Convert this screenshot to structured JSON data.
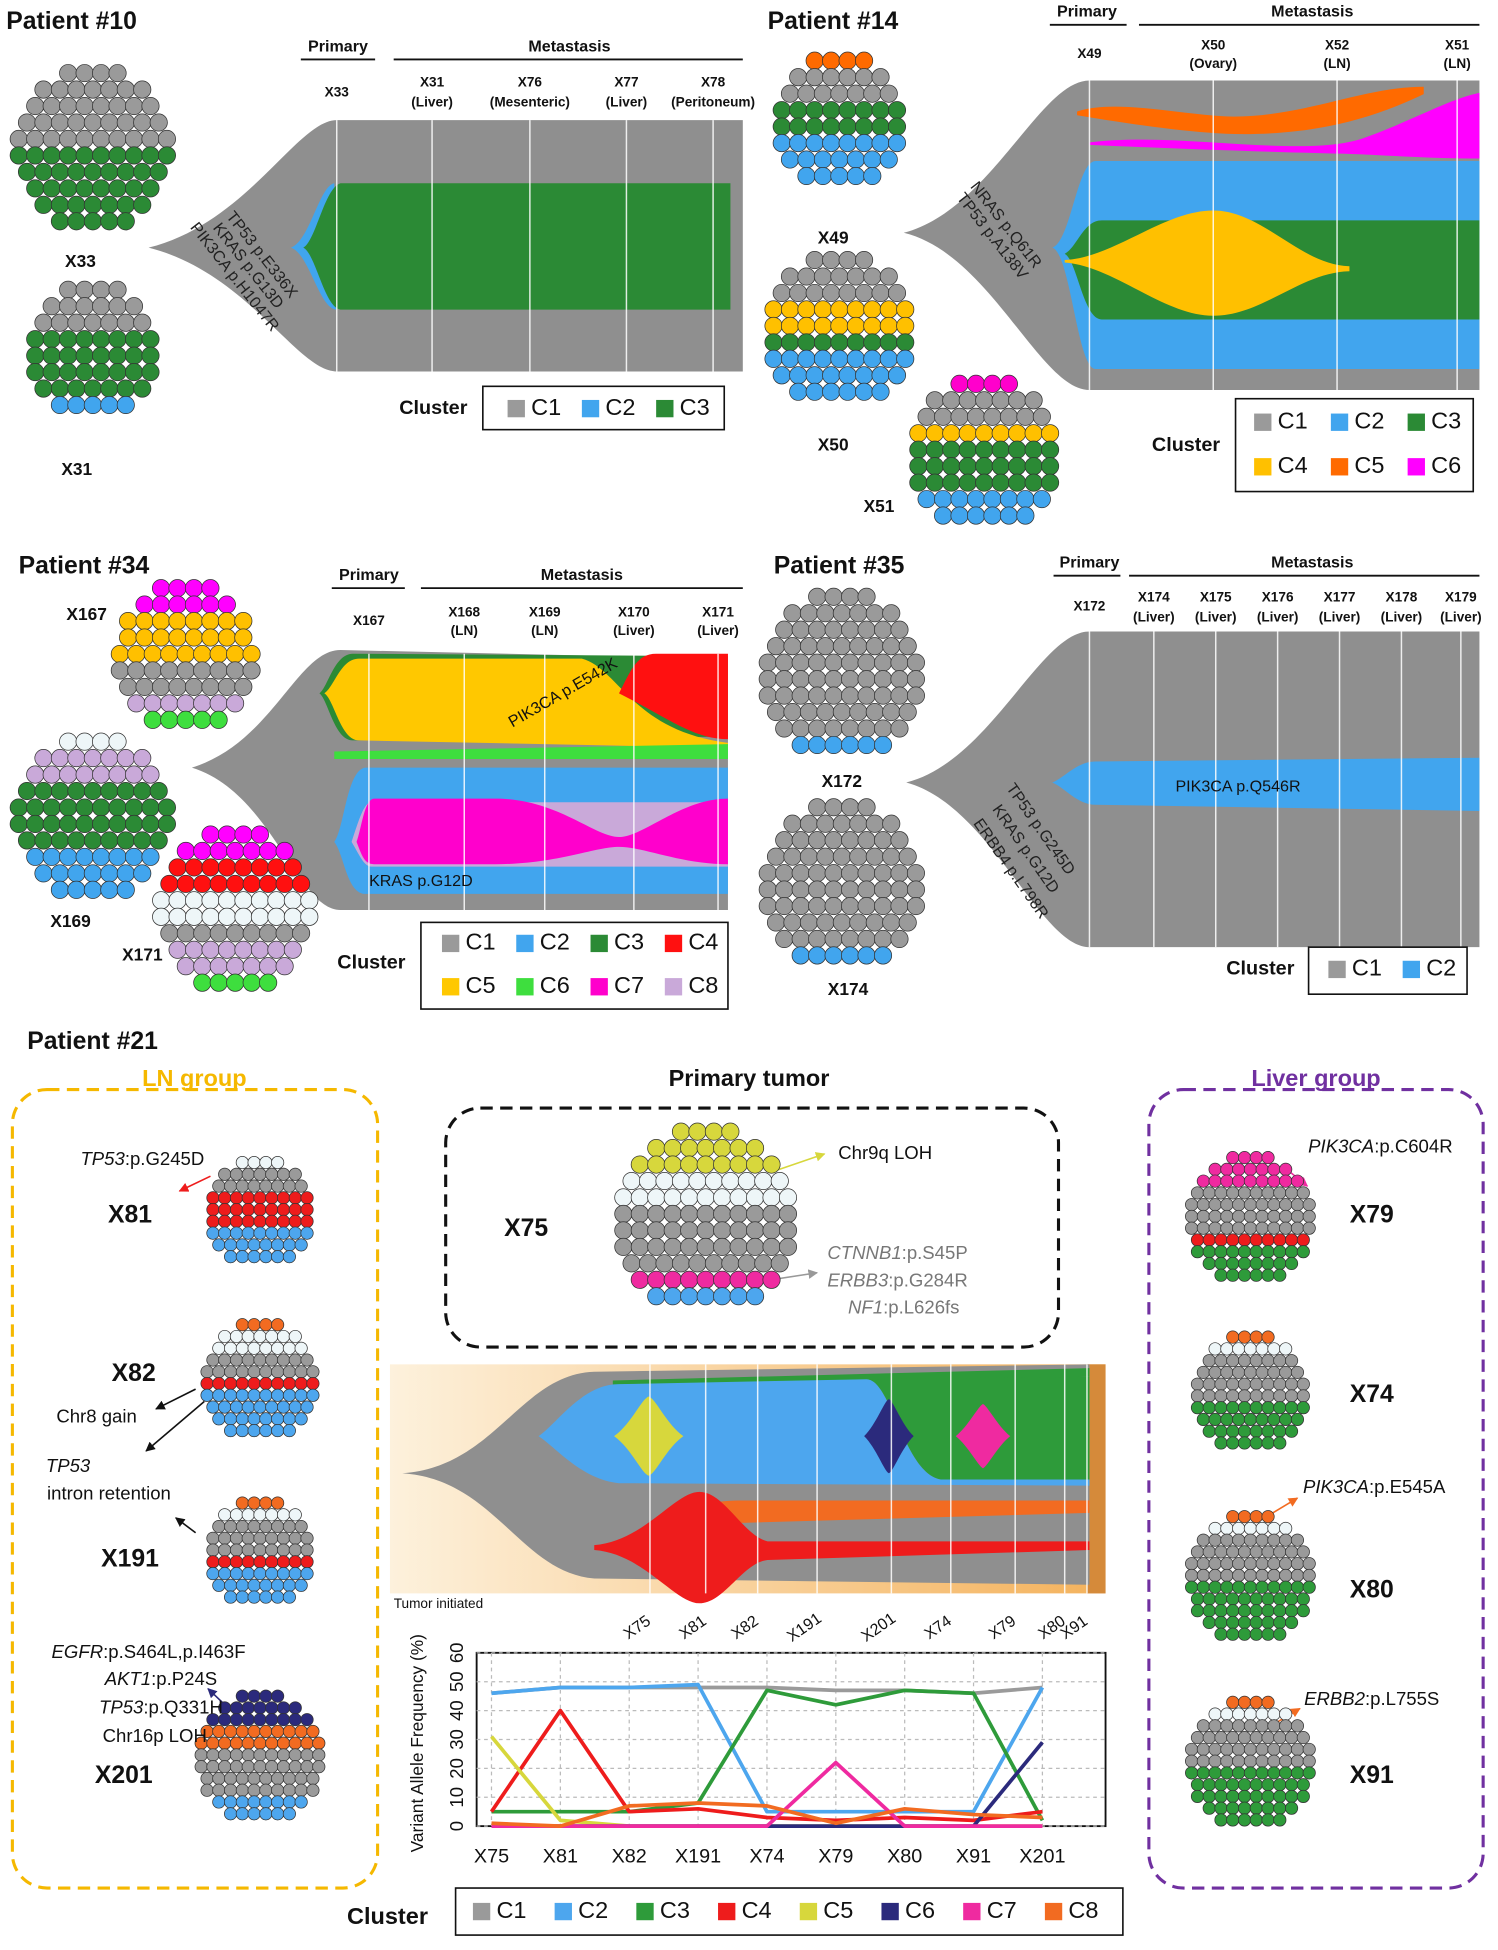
{
  "patients": [
    {
      "title": "Patient #10",
      "primary": "Primary",
      "metastasis": "Metastasis",
      "samples": [
        {
          "name": "X33"
        },
        {
          "name": "X31",
          "site": "(Liver)"
        },
        {
          "name": "X76",
          "site": "(Mesenteric)"
        },
        {
          "name": "X77",
          "site": "(Liver)"
        },
        {
          "name": "X78",
          "site": "(Peritoneum)"
        }
      ],
      "mutations": [
        "TP53 p.E336X",
        "KRAS p.G13D",
        "PIK3CA p.H1047R"
      ],
      "tumors": [
        "X33",
        "X31"
      ],
      "legend_title": "Cluster",
      "clusters": [
        {
          "name": "C1",
          "color": "#9a9a9a"
        },
        {
          "name": "C2",
          "color": "#41a5ee"
        },
        {
          "name": "C3",
          "color": "#2b8a35"
        }
      ]
    },
    {
      "title": "Patient #14",
      "primary": "Primary",
      "metastasis": "Metastasis",
      "samples": [
        {
          "name": "X49"
        },
        {
          "name": "X50",
          "site": "(Ovary)"
        },
        {
          "name": "X52",
          "site": "(LN)"
        },
        {
          "name": "X51",
          "site": "(LN)"
        }
      ],
      "mutations": [
        "NRAS p.Q61R",
        "TP53 p.A138V"
      ],
      "tumors": [
        "X49",
        "X50",
        "X51"
      ],
      "legend_title": "Cluster",
      "clusters": [
        {
          "name": "C1",
          "color": "#9a9a9a"
        },
        {
          "name": "C2",
          "color": "#41a5ee"
        },
        {
          "name": "C3",
          "color": "#2b8a35"
        },
        {
          "name": "C4",
          "color": "#ffc000"
        },
        {
          "name": "C5",
          "color": "#ff6a00"
        },
        {
          "name": "C6",
          "color": "#ff00ff"
        }
      ]
    },
    {
      "title": "Patient #34",
      "primary": "Primary",
      "metastasis": "Metastasis",
      "samples": [
        {
          "name": "X167"
        },
        {
          "name": "X168",
          "site": "(LN)"
        },
        {
          "name": "X169",
          "site": "(LN)"
        },
        {
          "name": "X170",
          "site": "(Liver)"
        },
        {
          "name": "X171",
          "site": "(Liver)"
        }
      ],
      "annotations": [
        "PIK3CA p.E542K",
        "KRAS p.G12D"
      ],
      "tumors": [
        "X167",
        "X169",
        "X171"
      ],
      "legend_title": "Cluster",
      "clusters": [
        {
          "name": "C1",
          "color": "#9a9a9a"
        },
        {
          "name": "C2",
          "color": "#41a5ee"
        },
        {
          "name": "C3",
          "color": "#2b8a35"
        },
        {
          "name": "C4",
          "color": "#ff1010"
        },
        {
          "name": "C5",
          "color": "#ffc800"
        },
        {
          "name": "C6",
          "color": "#3ede3e"
        },
        {
          "name": "C7",
          "color": "#ff00cc"
        },
        {
          "name": "C8",
          "color": "#c9a9d9"
        }
      ]
    },
    {
      "title": "Patient #35",
      "primary": "Primary",
      "metastasis": "Metastasis",
      "samples": [
        {
          "name": "X172"
        },
        {
          "name": "X174",
          "site": "(Liver)"
        },
        {
          "name": "X175",
          "site": "(Liver)"
        },
        {
          "name": "X176",
          "site": "(Liver)"
        },
        {
          "name": "X177",
          "site": "(Liver)"
        },
        {
          "name": "X178",
          "site": "(Liver)"
        },
        {
          "name": "X179",
          "site": "(Liver)"
        }
      ],
      "mutations": [
        "TP53 p.G245D",
        "KRAS p.G12D",
        "ERBB4 p.L798R"
      ],
      "annotations": [
        "PIK3CA p.Q546R"
      ],
      "tumors": [
        "X172",
        "X174"
      ],
      "legend_title": "Cluster",
      "clusters": [
        {
          "name": "C1",
          "color": "#9a9a9a"
        },
        {
          "name": "C2",
          "color": "#41a5ee"
        }
      ]
    }
  ],
  "patient21": {
    "title": "Patient #21",
    "ln_group": {
      "title": "LN group",
      "labels": [
        "X81",
        "X82",
        "X191",
        "X201"
      ]
    },
    "primary_tumor": {
      "title": "Primary tumor",
      "label": "X75"
    },
    "liver_group": {
      "title": "Liver group",
      "labels": [
        "X79",
        "X74",
        "X80",
        "X91"
      ]
    },
    "events": [
      {
        "gene": "TP53",
        "text": ":p.G245D"
      },
      {
        "text": "Chr8 gain"
      },
      {
        "gene": "TP53"
      },
      {
        "text": "intron retention"
      },
      {
        "gene": "EGFR",
        "text": ":p.S464L,p.I463F"
      },
      {
        "gene": "AKT1",
        "text": ":p.P24S"
      },
      {
        "gene": "TP53",
        "text": ":p.Q331H"
      },
      {
        "text": "Chr16p LOH"
      },
      {
        "text": "Chr9q LOH"
      },
      {
        "gene": "CTNNB1",
        "text": ":p.S45P"
      },
      {
        "gene": "ERBB3",
        "text": ":p.G284R"
      },
      {
        "gene": "NF1",
        "text": ":p.L626fs"
      },
      {
        "gene": "PIK3CA",
        "text": ":p.C604R"
      },
      {
        "gene": "PIK3CA",
        "text": ":p.E545A"
      },
      {
        "gene": "ERBB2",
        "text": ":p.L755S"
      }
    ],
    "fish_samples": [
      "X75",
      "X81",
      "X82",
      "X191",
      "X201",
      "X74",
      "X79",
      "X80",
      "X91"
    ],
    "tumor_initiated": "Tumor initiated"
  },
  "chart_data": {
    "type": "line",
    "ylabel": "Variant Allele Frequency (%)",
    "categories": [
      "X75",
      "X81",
      "X82",
      "X191",
      "X74",
      "X79",
      "X80",
      "X91",
      "X201"
    ],
    "series": [
      {
        "name": "C1",
        "color": "#9a9a9a",
        "values": [
          46,
          48,
          48,
          48,
          48,
          47,
          47,
          46,
          48
        ]
      },
      {
        "name": "C2",
        "color": "#4da6ee",
        "values": [
          46,
          48,
          48,
          49,
          5,
          5,
          5,
          5,
          48
        ]
      },
      {
        "name": "C3",
        "color": "#2e9b3a",
        "values": [
          5,
          5,
          5,
          8,
          47,
          42,
          47,
          46,
          2
        ]
      },
      {
        "name": "C4",
        "color": "#ee1c1c",
        "values": [
          5,
          40,
          5,
          6,
          3,
          2,
          3,
          2,
          5
        ]
      },
      {
        "name": "C5",
        "color": "#d7d73c",
        "values": [
          31,
          2,
          0,
          0,
          0,
          0,
          0,
          0,
          0
        ]
      },
      {
        "name": "C6",
        "color": "#2b2a7c",
        "values": [
          0,
          0,
          0,
          0,
          0,
          0,
          0,
          0,
          29
        ]
      },
      {
        "name": "C7",
        "color": "#ef2aa0",
        "values": [
          0,
          0,
          0,
          0,
          0,
          22,
          0,
          0,
          0
        ]
      },
      {
        "name": "C8",
        "color": "#f26b21",
        "values": [
          1,
          0,
          7,
          8,
          7,
          1,
          6,
          4,
          3
        ]
      }
    ],
    "ylim": [
      0,
      60
    ],
    "yticks": [
      0,
      10,
      20,
      30,
      40,
      50,
      60
    ],
    "grid": true,
    "legend_title": "Cluster"
  }
}
